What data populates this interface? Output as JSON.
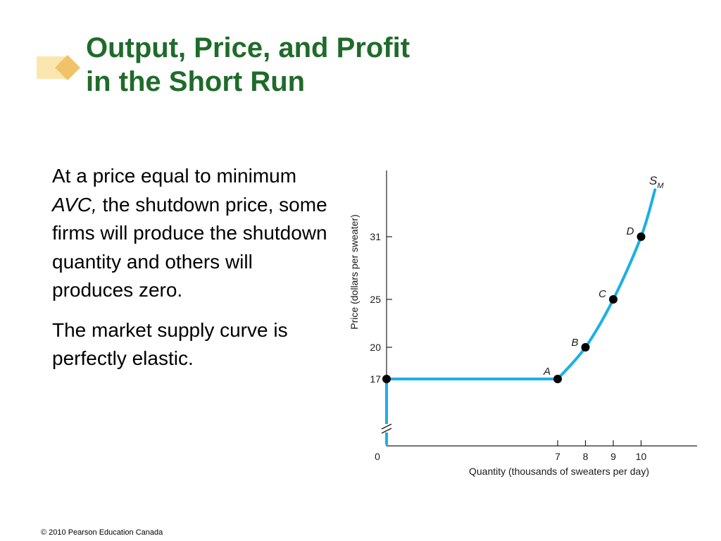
{
  "slide": {
    "title_line1": "Output, Price, and Profit",
    "title_line2": "in the Short Run",
    "para1_before": "At a price equal to minimum ",
    "para1_italic": "AVC,",
    "para1_after": " the shutdown price, some firms will produce the shutdown quantity and others will produces zero.",
    "para2": "The market supply curve is perfectly elastic.",
    "footer": "© 2010 Pearson Education Canada"
  },
  "colors": {
    "title": "#1f6b2a",
    "curve": "#1ab0e6",
    "deco_light": "#fbe6b0",
    "deco_dark": "#f0c36a"
  },
  "chart_data": {
    "type": "line",
    "xlabel": "Quantity (thousands of sweaters per day)",
    "ylabel": "Price (dollars per sweater)",
    "x_ticks": [
      7,
      8,
      9,
      10
    ],
    "y_ticks": [
      17,
      20,
      25,
      31
    ],
    "origin_label": "0",
    "axis_break": true,
    "series": [
      {
        "name": "S_M",
        "name_main": "S",
        "name_sub": "M",
        "points": [
          [
            0,
            0
          ],
          [
            0,
            17
          ],
          [
            7,
            17
          ],
          [
            8,
            20
          ],
          [
            9,
            25
          ],
          [
            10,
            31
          ],
          [
            10.5,
            35.5
          ]
        ]
      }
    ],
    "labeled_points": [
      {
        "label": "A",
        "x": 7,
        "y": 17
      },
      {
        "label": "B",
        "x": 8,
        "y": 20
      },
      {
        "label": "C",
        "x": 9,
        "y": 25
      },
      {
        "label": "D",
        "x": 10,
        "y": 31
      }
    ]
  }
}
